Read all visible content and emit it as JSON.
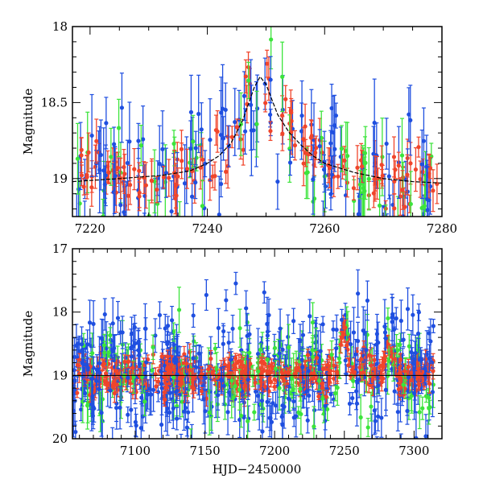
{
  "chart_data": [
    {
      "type": "scatter",
      "panel": "top",
      "title": "",
      "xlabel": "",
      "ylabel": "Magnitude",
      "xlim": [
        7217,
        7280
      ],
      "ylim": [
        19.25,
        18.0
      ],
      "x_ticks": [
        7220,
        7240,
        7260,
        7280
      ],
      "x_tick_labels": [
        "7220",
        "7240",
        "7260",
        "7280"
      ],
      "y_ticks": [
        18.0,
        18.5,
        19.0
      ],
      "y_tick_labels": [
        "18",
        "18.5",
        "19"
      ],
      "series": [
        {
          "name": "blue",
          "color": "#1f4fe0"
        },
        {
          "name": "green",
          "color": "#3ce43c"
        },
        {
          "name": "red",
          "color": "#f0452b"
        }
      ],
      "model_curve": {
        "name": "fitted light curve",
        "color": "#000000",
        "x": [
          7217,
          7225,
          7232,
          7237,
          7240,
          7242,
          7244,
          7246,
          7248,
          7249,
          7250,
          7251,
          7252,
          7254,
          7256,
          7258,
          7260,
          7265,
          7270,
          7275,
          7280
        ],
        "y": [
          19.02,
          19.0,
          18.98,
          18.95,
          18.9,
          18.85,
          18.77,
          18.62,
          18.4,
          18.33,
          18.38,
          18.48,
          18.58,
          18.7,
          18.78,
          18.85,
          18.9,
          18.96,
          19.0,
          19.02,
          19.03
        ]
      },
      "grid": false
    },
    {
      "type": "scatter",
      "panel": "bottom",
      "title": "",
      "xlabel": "HJD−2450000",
      "ylabel": "Magnitude",
      "xlim": [
        7055,
        7320
      ],
      "ylim": [
        20.0,
        17.0
      ],
      "x_ticks": [
        7100,
        7150,
        7200,
        7250,
        7300
      ],
      "x_tick_labels": [
        "7100",
        "7150",
        "7200",
        "7250",
        "7300"
      ],
      "y_ticks": [
        17,
        18,
        19,
        20
      ],
      "y_tick_labels": [
        "17",
        "18",
        "19",
        "20"
      ],
      "series": [
        {
          "name": "blue",
          "color": "#1f4fe0"
        },
        {
          "name": "green",
          "color": "#3ce43c"
        },
        {
          "name": "red",
          "color": "#f0452b"
        }
      ],
      "baseline": {
        "name": "baseline magnitude",
        "y": 19.0,
        "color": "#000000"
      },
      "grid": false
    }
  ]
}
